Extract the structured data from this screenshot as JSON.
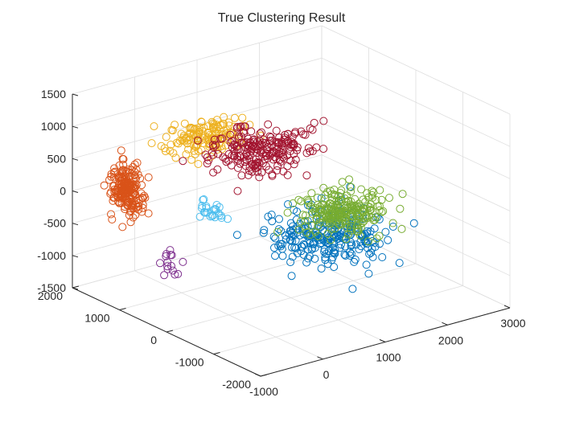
{
  "chart_data": {
    "type": "scatter",
    "title": "True Clustering Result",
    "xlabel": "",
    "ylabel": "",
    "zlabel": "",
    "axes_3d": {
      "x": {
        "lim": [
          -1000,
          3000
        ],
        "ticks": [
          -1000,
          0,
          1000,
          2000,
          3000
        ]
      },
      "y": {
        "lim": [
          -2000,
          2000
        ],
        "ticks": [
          -2000,
          -1000,
          0,
          1000,
          2000
        ]
      },
      "z": {
        "lim": [
          -1500,
          1500
        ],
        "ticks": [
          -1500,
          -1000,
          -500,
          0,
          500,
          1000,
          1500
        ]
      }
    },
    "grid": true,
    "marker": "open-circle",
    "legend": "none",
    "series": [
      {
        "color": "#0072BD",
        "center": [
          1600,
          0,
          -700
        ],
        "spread": [
          700,
          700,
          300
        ],
        "count": 260
      },
      {
        "color": "#D95319",
        "center": [
          -300,
          1800,
          -100
        ],
        "spread": [
          150,
          250,
          350
        ],
        "count": 200
      },
      {
        "color": "#EDB120",
        "center": [
          500,
          1200,
          700
        ],
        "spread": [
          500,
          400,
          200
        ],
        "count": 150
      },
      {
        "color": "#7E2F8E",
        "center": [
          -200,
          1000,
          -1000
        ],
        "spread": [
          150,
          150,
          150
        ],
        "count": 15
      },
      {
        "color": "#77AC30",
        "center": [
          2000,
          200,
          -500
        ],
        "spread": [
          500,
          500,
          200
        ],
        "count": 230
      },
      {
        "color": "#4DBEEE",
        "center": [
          500,
          1000,
          -400
        ],
        "spread": [
          200,
          200,
          150
        ],
        "count": 25
      },
      {
        "color": "#A2142F",
        "center": [
          1200,
          900,
          400
        ],
        "spread": [
          600,
          500,
          250
        ],
        "count": 220
      }
    ]
  }
}
